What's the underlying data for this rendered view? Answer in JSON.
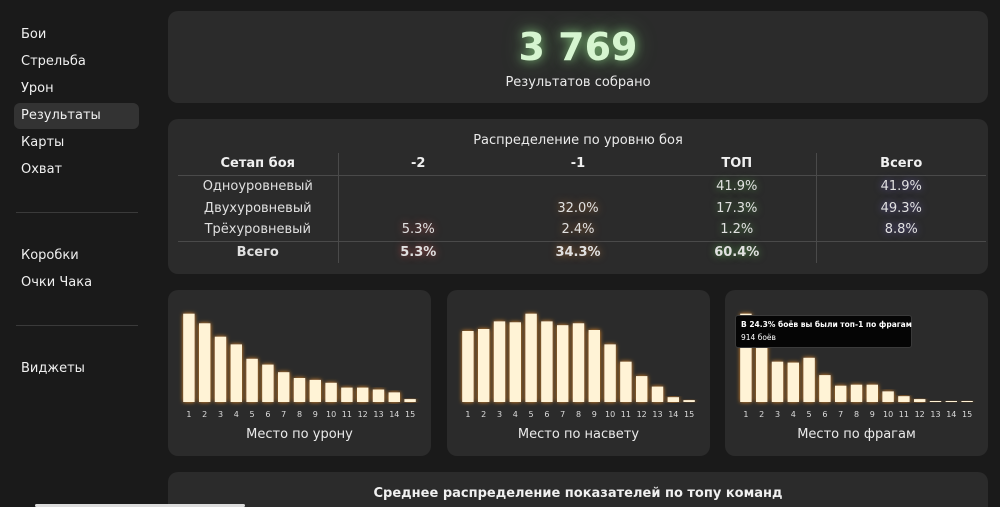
{
  "sidebar": {
    "group1": [
      "Бои",
      "Стрельба",
      "Урон",
      "Результаты",
      "Карты",
      "Охват"
    ],
    "group2": [
      "Коробки",
      "Очки Чака"
    ],
    "group3": [
      "Виджеты"
    ],
    "active": "Результаты"
  },
  "summary": {
    "count": "3 769",
    "caption": "Результатов собрано"
  },
  "distribution": {
    "title": "Распределение по уровню боя",
    "headers": [
      "Сетап боя",
      "-2",
      "-1",
      "ТОП",
      "Всего"
    ],
    "rows": [
      [
        "Одноуровневый",
        "",
        "",
        "41.9%",
        "41.9%"
      ],
      [
        "Двухуровневый",
        "",
        "32.0%",
        "17.3%",
        "49.3%"
      ],
      [
        "Трёхуровневый",
        "5.3%",
        "2.4%",
        "1.2%",
        "8.8%"
      ]
    ],
    "total": [
      "Всего",
      "5.3%",
      "34.3%",
      "60.4%",
      ""
    ]
  },
  "chart_data": [
    {
      "type": "bar",
      "title": "Место по урону",
      "categories": [
        "1",
        "2",
        "3",
        "4",
        "5",
        "6",
        "7",
        "8",
        "9",
        "10",
        "11",
        "12",
        "13",
        "14",
        "15"
      ],
      "values": [
        92,
        82,
        68,
        60,
        45,
        39,
        31,
        25,
        23,
        20,
        15,
        15,
        13,
        10,
        3
      ],
      "ylim": [
        0,
        100
      ],
      "color": "#fff3d6"
    },
    {
      "type": "bar",
      "title": "Место по насвету",
      "categories": [
        "1",
        "2",
        "3",
        "4",
        "5",
        "6",
        "7",
        "8",
        "9",
        "10",
        "11",
        "12",
        "13",
        "14",
        "15"
      ],
      "values": [
        74,
        76,
        84,
        83,
        92,
        84,
        80,
        82,
        75,
        60,
        42,
        27,
        16,
        5,
        2
      ],
      "ylim": [
        0,
        100
      ],
      "color": "#fff3d6"
    },
    {
      "type": "bar",
      "title": "Место по фрагам",
      "categories": [
        "1",
        "2",
        "3",
        "4",
        "5",
        "6",
        "7",
        "8",
        "9",
        "10",
        "11",
        "12",
        "13",
        "14",
        "15"
      ],
      "values": [
        92,
        60,
        42,
        41,
        46,
        28,
        17,
        18,
        18,
        11,
        6,
        3,
        1,
        1,
        1
      ],
      "ylim": [
        0,
        100
      ],
      "color": "#fff3d6",
      "tooltip": {
        "line1": "В 24.3% боёв вы были топ-1 по фрагам",
        "line2": "914 боёв"
      }
    }
  ],
  "bottom": {
    "title": "Среднее распределение показателей по топу команд"
  }
}
